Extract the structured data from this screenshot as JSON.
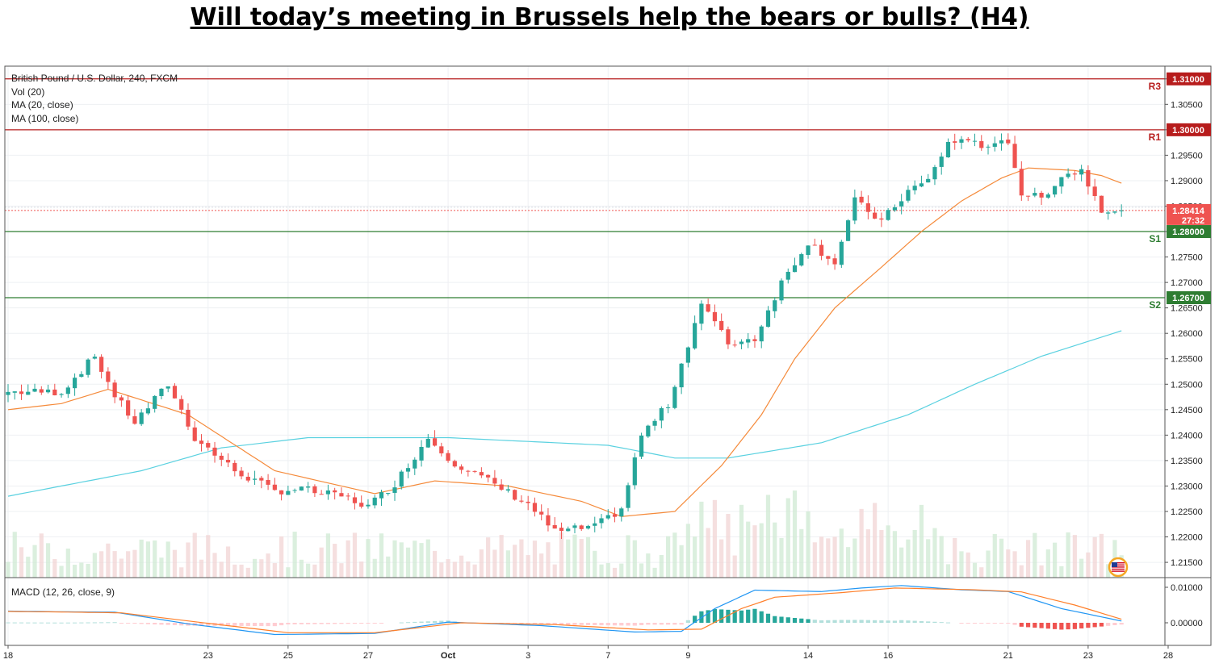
{
  "title": "Will today’s meeting in Brussels help the bears or bulls? (H4)",
  "legend": {
    "symbol": "British Pound / U.S. Dollar, 240, FXCM",
    "vol": "Vol (20)",
    "ma20": "MA (20, close)",
    "ma100": "MA (100, close)"
  },
  "macd_label": "MACD (12, 26, close, 9)",
  "colors": {
    "bull": "#26a69a",
    "bear": "#ef5350",
    "ma20": "#f58a3a",
    "ma100": "#5ad1e0",
    "resistance": "#b71c1c",
    "support": "#2e7d32",
    "macd": "#2196f3",
    "signal": "#ff7f2a"
  },
  "chart_data": {
    "type": "candlestick",
    "symbol": "GBP/USD",
    "timeframe": "240",
    "ylim": [
      1.212,
      1.3125
    ],
    "y_ticks": [
      "1.31000",
      "1.30500",
      "1.30000",
      "1.29500",
      "1.29000",
      "1.28500",
      "1.28000",
      "1.27500",
      "1.27000",
      "1.26500",
      "1.26000",
      "1.25500",
      "1.25000",
      "1.24500",
      "1.24000",
      "1.23500",
      "1.23000",
      "1.22500",
      "1.22000",
      "1.21500"
    ],
    "x_tick_labels": [
      "18",
      "23",
      "25",
      "27",
      "Oct",
      "3",
      "7",
      "9",
      "14",
      "16",
      "21",
      "23",
      "28"
    ],
    "levels": [
      {
        "name": "R3",
        "value": 1.31,
        "label": "1.31000",
        "kind": "resistance"
      },
      {
        "name": "R1",
        "value": 1.3,
        "label": "1.30000",
        "kind": "resistance"
      },
      {
        "name": "S1",
        "value": 1.28,
        "label": "1.28000",
        "kind": "support"
      },
      {
        "name": "S2",
        "value": 1.267,
        "label": "1.26700",
        "kind": "support"
      }
    ],
    "last_price": {
      "value": 1.28414,
      "label": "1.28414",
      "countdown": "27:32"
    },
    "macd_ticks": [
      "0.01000",
      "0.00000"
    ],
    "anchors_close": [
      [
        0,
        1.2485
      ],
      [
        8,
        1.2485
      ],
      [
        13,
        1.2555
      ],
      [
        16,
        1.2478
      ],
      [
        19,
        1.2425
      ],
      [
        24,
        1.25
      ],
      [
        28,
        1.2395
      ],
      [
        34,
        1.233
      ],
      [
        40,
        1.229
      ],
      [
        44,
        1.2295
      ],
      [
        47,
        1.2285
      ],
      [
        50,
        1.228
      ],
      [
        54,
        1.226
      ],
      [
        58,
        1.2305
      ],
      [
        63,
        1.2395
      ],
      [
        67,
        1.2345
      ],
      [
        72,
        1.231
      ],
      [
        78,
        1.2265
      ],
      [
        82,
        1.221
      ],
      [
        88,
        1.222
      ],
      [
        92,
        1.2255
      ],
      [
        95,
        1.24
      ],
      [
        99,
        1.246
      ],
      [
        104,
        1.266
      ],
      [
        108,
        1.258
      ],
      [
        112,
        1.259
      ],
      [
        116,
        1.27
      ],
      [
        120,
        1.278
      ],
      [
        124,
        1.274
      ],
      [
        127,
        1.286
      ],
      [
        131,
        1.282
      ],
      [
        135,
        1.288
      ],
      [
        138,
        1.29
      ],
      [
        141,
        1.2975
      ],
      [
        145,
        1.298
      ],
      [
        147,
        1.296
      ],
      [
        150,
        1.298
      ],
      [
        152,
        1.2875
      ],
      [
        155,
        1.2865
      ],
      [
        158,
        1.291
      ],
      [
        161,
        1.292
      ],
      [
        164,
        1.2845
      ],
      [
        167,
        1.28414
      ]
    ],
    "anchors_ma20": [
      [
        0,
        1.245
      ],
      [
        8,
        1.2462
      ],
      [
        15,
        1.249
      ],
      [
        27,
        1.244
      ],
      [
        40,
        1.233
      ],
      [
        55,
        1.2285
      ],
      [
        64,
        1.231
      ],
      [
        75,
        1.23
      ],
      [
        86,
        1.227
      ],
      [
        92,
        1.224
      ],
      [
        100,
        1.225
      ],
      [
        107,
        1.234
      ],
      [
        113,
        1.244
      ],
      [
        118,
        1.255
      ],
      [
        124,
        1.265
      ],
      [
        131,
        1.273
      ],
      [
        137,
        1.28
      ],
      [
        143,
        1.286
      ],
      [
        149,
        1.2905
      ],
      [
        153,
        1.2925
      ],
      [
        160,
        1.292
      ],
      [
        164,
        1.291
      ],
      [
        167,
        1.2895
      ]
    ],
    "anchors_ma100": [
      [
        0,
        1.228
      ],
      [
        20,
        1.233
      ],
      [
        32,
        1.2375
      ],
      [
        45,
        1.2395
      ],
      [
        66,
        1.2395
      ],
      [
        90,
        1.238
      ],
      [
        100,
        1.2355
      ],
      [
        108,
        1.2355
      ],
      [
        122,
        1.2385
      ],
      [
        135,
        1.244
      ],
      [
        145,
        1.25
      ],
      [
        155,
        1.2555
      ],
      [
        167,
        1.2605
      ]
    ],
    "anchors_macd": [
      [
        0,
        0.0033
      ],
      [
        8,
        0.0031
      ],
      [
        16,
        0.003
      ],
      [
        27,
        -0.0003
      ],
      [
        40,
        -0.0033
      ],
      [
        55,
        -0.003
      ],
      [
        66,
        0.0002
      ],
      [
        80,
        -0.0008
      ],
      [
        94,
        -0.0026
      ],
      [
        101,
        -0.0024
      ],
      [
        106,
        0.004
      ],
      [
        112,
        0.0092
      ],
      [
        122,
        0.0088
      ],
      [
        128,
        0.0098
      ],
      [
        134,
        0.0105
      ],
      [
        143,
        0.0093
      ],
      [
        150,
        0.0088
      ],
      [
        158,
        0.004
      ],
      [
        167,
        0.0005
      ]
    ],
    "anchors_signal": [
      [
        0,
        0.0032
      ],
      [
        10,
        0.003
      ],
      [
        17,
        0.0028
      ],
      [
        28,
        0.0003
      ],
      [
        42,
        -0.0028
      ],
      [
        55,
        -0.0028
      ],
      [
        68,
        0.0
      ],
      [
        82,
        -0.0005
      ],
      [
        96,
        -0.002
      ],
      [
        104,
        -0.0018
      ],
      [
        110,
        0.004
      ],
      [
        115,
        0.0072
      ],
      [
        125,
        0.0085
      ],
      [
        133,
        0.0098
      ],
      [
        145,
        0.0093
      ],
      [
        152,
        0.0087
      ],
      [
        160,
        0.005
      ],
      [
        167,
        0.001
      ]
    ]
  }
}
